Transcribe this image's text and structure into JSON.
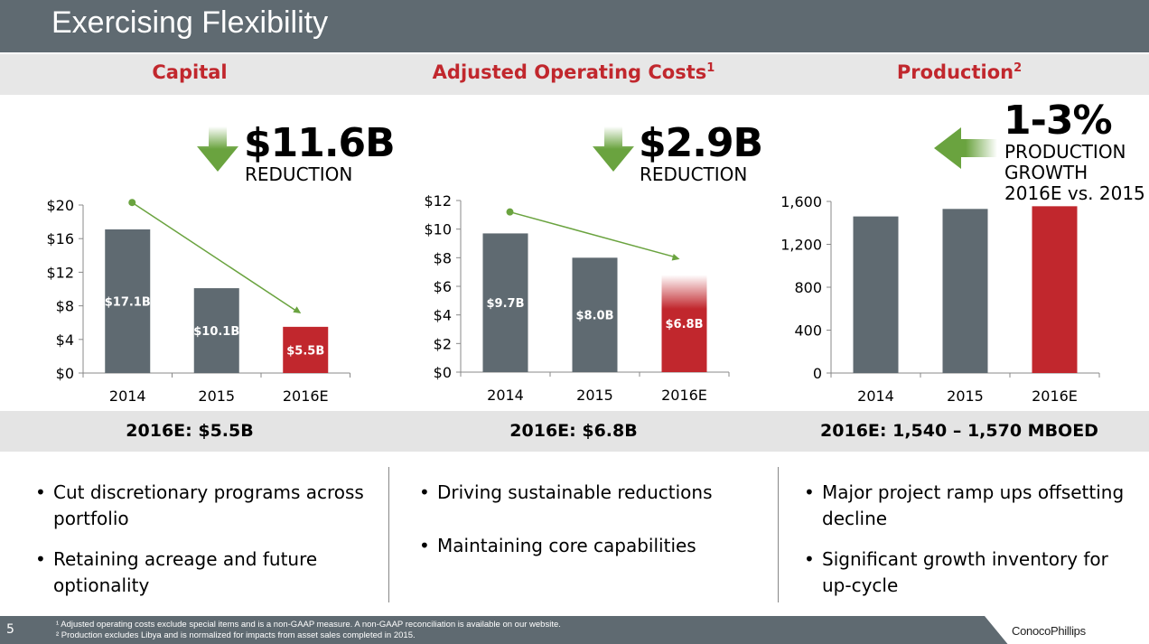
{
  "header": {
    "title": "Exercising Flexibility"
  },
  "sections": [
    {
      "title": "Capital",
      "sup": "",
      "headline": "$11.6B",
      "headline_sub": "REDUCTION",
      "arrow": "down-arrow-icon",
      "summary": "2016E: $5.5B",
      "bullets": [
        "Cut discretionary programs across portfolio",
        "Retaining acreage and future optionality"
      ]
    },
    {
      "title": "Adjusted Operating Costs",
      "sup": "1",
      "headline": "$2.9B",
      "headline_sub": "REDUCTION",
      "arrow": "down-arrow-icon",
      "summary": "2016E: $6.8B",
      "bullets": [
        "Driving sustainable reductions",
        "Maintaining core capabilities"
      ]
    },
    {
      "title": "Production",
      "sup": "2",
      "headline": "1-3%",
      "headline_sub": "PRODUCTION GROWTH 2016E vs. 2015",
      "headline_lines": [
        "PRODUCTION",
        "GROWTH",
        "2016E vs. 2015"
      ],
      "arrow": "left-arrow-icon",
      "summary": "2016E: 1,540 – 1,570 MBOED",
      "bullets": [
        "Major project ramp ups offsetting decline",
        "Significant growth inventory for up-cycle"
      ]
    }
  ],
  "colors": {
    "header": "#5f6a71",
    "bar": "#5f6a71",
    "highlight": "#c1272d",
    "accent_red": "#c1272d",
    "arrow_green": "#6aa33f"
  },
  "chart_data": [
    {
      "type": "bar",
      "title": "Capital",
      "categories": [
        "2014",
        "2015",
        "2016E"
      ],
      "values": [
        17.1,
        10.1,
        5.5
      ],
      "data_labels": [
        "$17.1B",
        "$10.1B",
        "$5.5B"
      ],
      "ylim": [
        0,
        20
      ],
      "yticks": [
        0,
        4,
        8,
        12,
        16,
        20
      ],
      "ytick_labels": [
        "$0",
        "$4",
        "$8",
        "$12",
        "$16",
        "$20"
      ],
      "highlight_index": 2,
      "grid": false,
      "trend_arrow": "down"
    },
    {
      "type": "bar",
      "title": "Adjusted Operating Costs",
      "categories": [
        "2014",
        "2015",
        "2016E"
      ],
      "values": [
        9.7,
        8.0,
        6.8
      ],
      "data_labels": [
        "$9.7B",
        "$8.0B",
        "$6.8B"
      ],
      "ylim": [
        0,
        12
      ],
      "yticks": [
        0,
        2,
        4,
        6,
        8,
        10,
        12
      ],
      "ytick_labels": [
        "$0",
        "$2",
        "$4",
        "$6",
        "$8",
        "$10",
        "$12"
      ],
      "highlight_index": 2,
      "grid": false,
      "trend_arrow": "down"
    },
    {
      "type": "bar",
      "title": "Production",
      "categories": [
        "2014",
        "2015",
        "2016E"
      ],
      "values": [
        1460,
        1530,
        1555
      ],
      "data_labels": [],
      "ylim": [
        0,
        1600
      ],
      "yticks": [
        0,
        400,
        800,
        1200,
        1600
      ],
      "ytick_labels": [
        "0",
        "400",
        "800",
        "1,200",
        "1,600"
      ],
      "highlight_index": 2,
      "grid": false
    }
  ],
  "footer": {
    "page": "5",
    "notes": [
      "¹ Adjusted operating costs exclude special items and is a non-GAAP measure. A non-GAAP reconciliation is available on our website.",
      "² Production excludes Libya and is normalized for impacts from asset sales completed in 2015."
    ],
    "logo": "ConocoPhillips"
  }
}
